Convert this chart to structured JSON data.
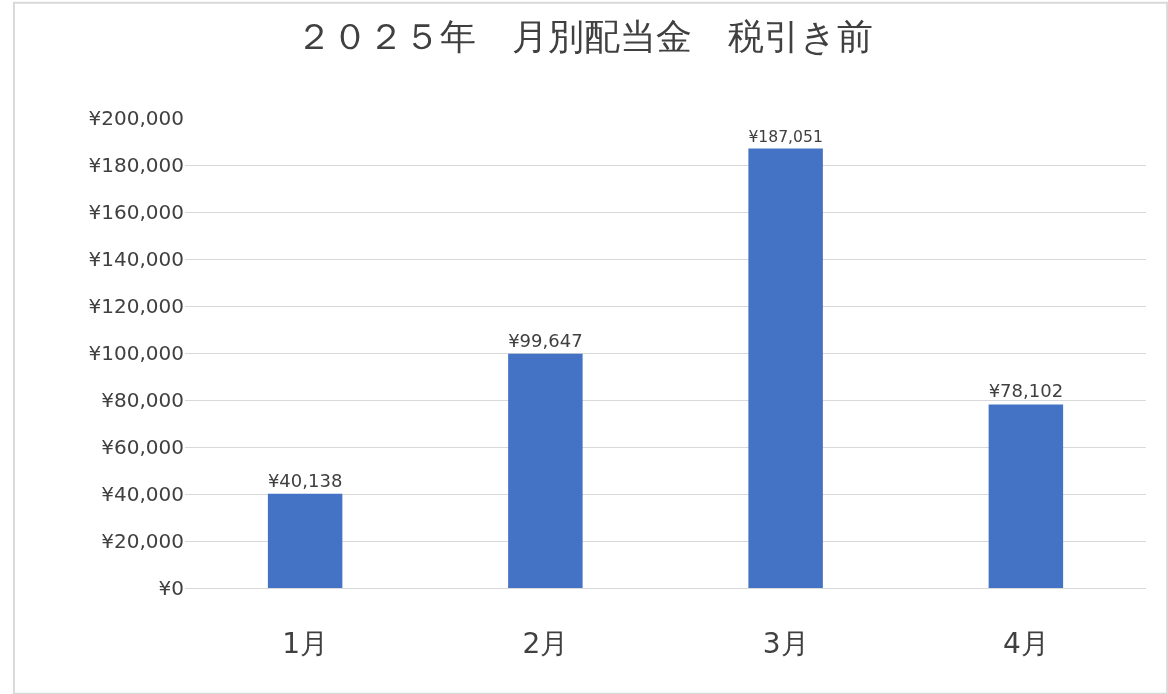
{
  "chart_data": {
    "type": "bar",
    "title": "２０２５年　月別配当金　税引き前",
    "categories": [
      "1月",
      "2月",
      "3月",
      "4月"
    ],
    "values": [
      40138,
      99647,
      187051,
      78102
    ],
    "value_labels": [
      "¥40,138",
      "¥99,647",
      "¥187,051",
      "¥78,102"
    ],
    "color": "#4472c4",
    "ylim": [
      0,
      200000
    ],
    "yticks": [
      {
        "value": 0,
        "label": "¥0"
      },
      {
        "value": 20000,
        "label": "¥20,000"
      },
      {
        "value": 40000,
        "label": "¥40,000"
      },
      {
        "value": 60000,
        "label": "¥60,000"
      },
      {
        "value": 80000,
        "label": "¥80,000"
      },
      {
        "value": 100000,
        "label": "¥100,000"
      },
      {
        "value": 120000,
        "label": "¥120,000"
      },
      {
        "value": 140000,
        "label": "¥140,000"
      },
      {
        "value": 160000,
        "label": "¥160,000"
      },
      {
        "value": 180000,
        "label": "¥180,000"
      },
      {
        "value": 200000,
        "label": "¥200,000"
      }
    ],
    "grid": "y",
    "legend": false
  }
}
